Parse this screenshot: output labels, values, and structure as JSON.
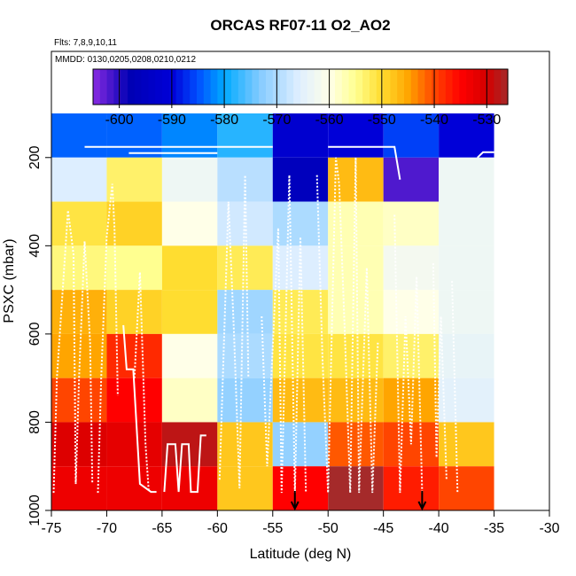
{
  "chart_data": {
    "type": "heatmap",
    "title": "ORCAS RF07-11 O2_AO2",
    "flights_label": "Flts: 7,8,9,10,11",
    "dates_label": "MMDD: 0130,0205,0208,0210,0212",
    "xlabel": "Latitude (deg N)",
    "ylabel": "PSXC (mbar)",
    "xlim": [
      -75,
      -30
    ],
    "ylim": [
      1000,
      100
    ],
    "xticks": [
      -75,
      -70,
      -65,
      -60,
      -55,
      -50,
      -45,
      -40,
      -35,
      -30
    ],
    "yticks": [
      200,
      400,
      600,
      800,
      1000
    ],
    "colorbar": {
      "range": [
        -605,
        -526
      ],
      "ticks": [
        -600,
        -590,
        -580,
        -570,
        -560,
        -550,
        -540,
        -530
      ],
      "stops": [
        {
          "v": -605,
          "c": "#8a2be2"
        },
        {
          "v": -598,
          "c": "#0000b4"
        },
        {
          "v": -590,
          "c": "#0000d8"
        },
        {
          "v": -585,
          "c": "#0050ff"
        },
        {
          "v": -580,
          "c": "#00aaff"
        },
        {
          "v": -573,
          "c": "#88ccff"
        },
        {
          "v": -566,
          "c": "#ddeeff"
        },
        {
          "v": -560,
          "c": "#ffffe8"
        },
        {
          "v": -555,
          "c": "#ffff90"
        },
        {
          "v": -550,
          "c": "#ffdd30"
        },
        {
          "v": -545,
          "c": "#ffa500"
        },
        {
          "v": -540,
          "c": "#ff4500"
        },
        {
          "v": -535,
          "c": "#ff0000"
        },
        {
          "v": -530,
          "c": "#d40000"
        },
        {
          "v": -526,
          "c": "#a52a2a"
        }
      ]
    },
    "lat_bin_edges": [
      -75,
      -70,
      -65,
      -60,
      -55,
      -50,
      -45,
      -40,
      -35
    ],
    "pressure_bin_edges": [
      100,
      200,
      300,
      400,
      500,
      600,
      700,
      800,
      900,
      1000
    ],
    "grid_values": [
      [
        -584,
        -584,
        -582,
        -578,
        -592,
        -590,
        -586,
        -590
      ],
      [
        -566,
        -553,
        -563,
        -569,
        -596,
        -547,
        -602,
        -563
      ],
      [
        -551,
        -549,
        -560,
        -567,
        -570,
        -557,
        -558,
        -563
      ],
      [
        -554,
        -555,
        -550,
        -552,
        -566,
        -557,
        -562,
        -563
      ],
      [
        -546,
        -549,
        -550,
        -571,
        -552,
        -557,
        -560,
        -563
      ],
      [
        -545,
        -538,
        -560,
        -570,
        -551,
        -551,
        -553,
        -564
      ],
      [
        -540,
        -535,
        -558,
        -572,
        -547,
        -547,
        -545,
        -565
      ],
      [
        -531,
        -532,
        -528,
        -548,
        -572,
        -541,
        -540,
        -548
      ],
      [
        -533,
        -533,
        -533,
        -548,
        -535,
        -526,
        -537,
        -540
      ]
    ],
    "flight_track_labels": [
      "flight tracks (white dotted)"
    ],
    "arrows_at_latitude": [
      -53,
      -41.5
    ]
  }
}
